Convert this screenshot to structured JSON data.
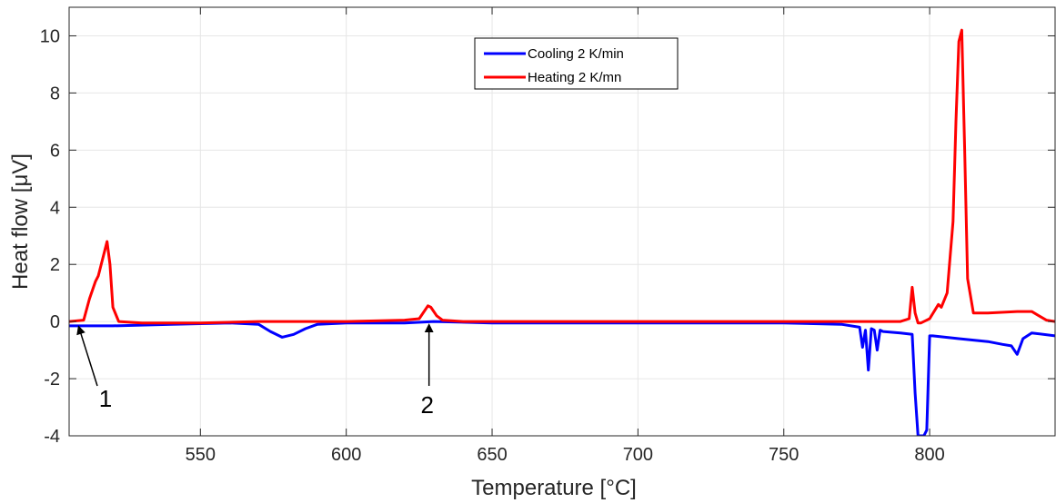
{
  "chart_data": {
    "type": "line",
    "xlabel": "Temperature [°C]",
    "ylabel": "Heat flow [μV]",
    "xlim": [
      505,
      843
    ],
    "ylim": [
      -4,
      11
    ],
    "xticks": [
      550,
      600,
      650,
      700,
      750,
      800
    ],
    "yticks": [
      -4,
      -2,
      0,
      2,
      4,
      6,
      8,
      10
    ],
    "grid": true,
    "legend_position": "top-center",
    "series": [
      {
        "name": "Cooling 2 K/min",
        "color": "#0000ff",
        "x": [
          505,
          520,
          540,
          560,
          570,
          574,
          578,
          582,
          586,
          590,
          600,
          620,
          630,
          650,
          700,
          750,
          770,
          776,
          777,
          778,
          779,
          780,
          781,
          782,
          783,
          784,
          790,
          794,
          795,
          796,
          797,
          798,
          799,
          800,
          801,
          810,
          820,
          825,
          828,
          830,
          832,
          835,
          843
        ],
        "y": [
          -0.15,
          -0.15,
          -0.1,
          -0.05,
          -0.1,
          -0.35,
          -0.55,
          -0.45,
          -0.25,
          -0.1,
          -0.05,
          -0.05,
          0,
          -0.05,
          -0.05,
          -0.05,
          -0.1,
          -0.2,
          -0.9,
          -0.3,
          -1.7,
          -0.25,
          -0.3,
          -1.0,
          -0.3,
          -0.35,
          -0.4,
          -0.45,
          -2.5,
          -4.0,
          -4.0,
          -4.0,
          -3.8,
          -0.5,
          -0.5,
          -0.6,
          -0.7,
          -0.8,
          -0.85,
          -1.15,
          -0.6,
          -0.4,
          -0.5
        ]
      },
      {
        "name": "Heating 2 K/mn",
        "color": "#ff0000",
        "x": [
          505,
          510,
          512,
          514,
          515,
          517,
          518,
          519,
          520,
          522,
          530,
          550,
          570,
          600,
          620,
          625,
          628,
          629,
          631,
          633,
          640,
          650,
          700,
          750,
          780,
          790,
          793,
          794,
          795,
          796,
          797,
          800,
          803,
          804,
          806,
          808,
          809,
          810,
          811,
          812,
          813,
          815,
          820,
          830,
          835,
          840,
          843
        ],
        "y": [
          0,
          0.05,
          0.8,
          1.4,
          1.6,
          2.4,
          2.8,
          2.0,
          0.5,
          0,
          -0.05,
          -0.05,
          0,
          0,
          0.05,
          0.1,
          0.55,
          0.5,
          0.2,
          0.05,
          0,
          0,
          0,
          0,
          0,
          0,
          0.1,
          1.2,
          0.3,
          -0.05,
          -0.05,
          0.1,
          0.6,
          0.5,
          1.0,
          3.5,
          7.0,
          9.8,
          10.2,
          6.0,
          1.5,
          0.3,
          0.3,
          0.35,
          0.35,
          0.05,
          0
        ]
      }
    ],
    "annotations": [
      {
        "text": "1",
        "x": 508,
        "y": 0
      },
      {
        "text": "2",
        "x": 629,
        "y": 0
      }
    ]
  }
}
